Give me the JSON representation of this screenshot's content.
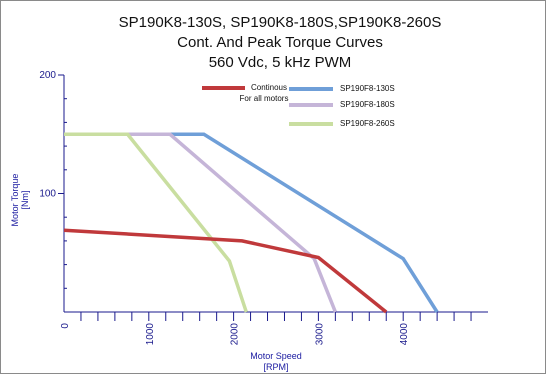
{
  "chart_data": {
    "type": "line",
    "title": [
      "SP190K8-130S, SP190K8-180S,SP190K8-260S",
      "Cont. And Peak Torque Curves",
      "560 Vdc, 5 kHz PWM"
    ],
    "xlabel": [
      "Motor Speed",
      "[RPM]"
    ],
    "ylabel": [
      "Motor Torque",
      "[Nm]"
    ],
    "xlim": [
      0,
      5000
    ],
    "ylim": [
      0,
      200
    ],
    "x_ticks": [
      0,
      1000,
      2000,
      3000,
      4000
    ],
    "y_ticks": [
      100,
      200
    ],
    "grid": false,
    "legend_position": "top-center",
    "series": [
      {
        "name": "Continous For all motors",
        "legend_lines": [
          "Continous",
          "For all motors"
        ],
        "color": "#c0393b",
        "x": [
          0,
          2100,
          3000,
          3800
        ],
        "y": [
          69,
          60,
          46,
          0
        ]
      },
      {
        "name": "SP190F8-130S",
        "color": "#6f9fd8",
        "x": [
          0,
          1650,
          4000,
          4400
        ],
        "y": [
          150,
          150,
          45,
          0
        ]
      },
      {
        "name": "SP190F8-180S",
        "color": "#c5b5d8",
        "x": [
          0,
          1250,
          2950,
          3200
        ],
        "y": [
          150,
          150,
          45,
          0
        ]
      },
      {
        "name": "SP190F8-260S",
        "color": "#c9dea0",
        "x": [
          0,
          750,
          1950,
          2150
        ],
        "y": [
          150,
          150,
          43,
          0
        ]
      }
    ]
  }
}
